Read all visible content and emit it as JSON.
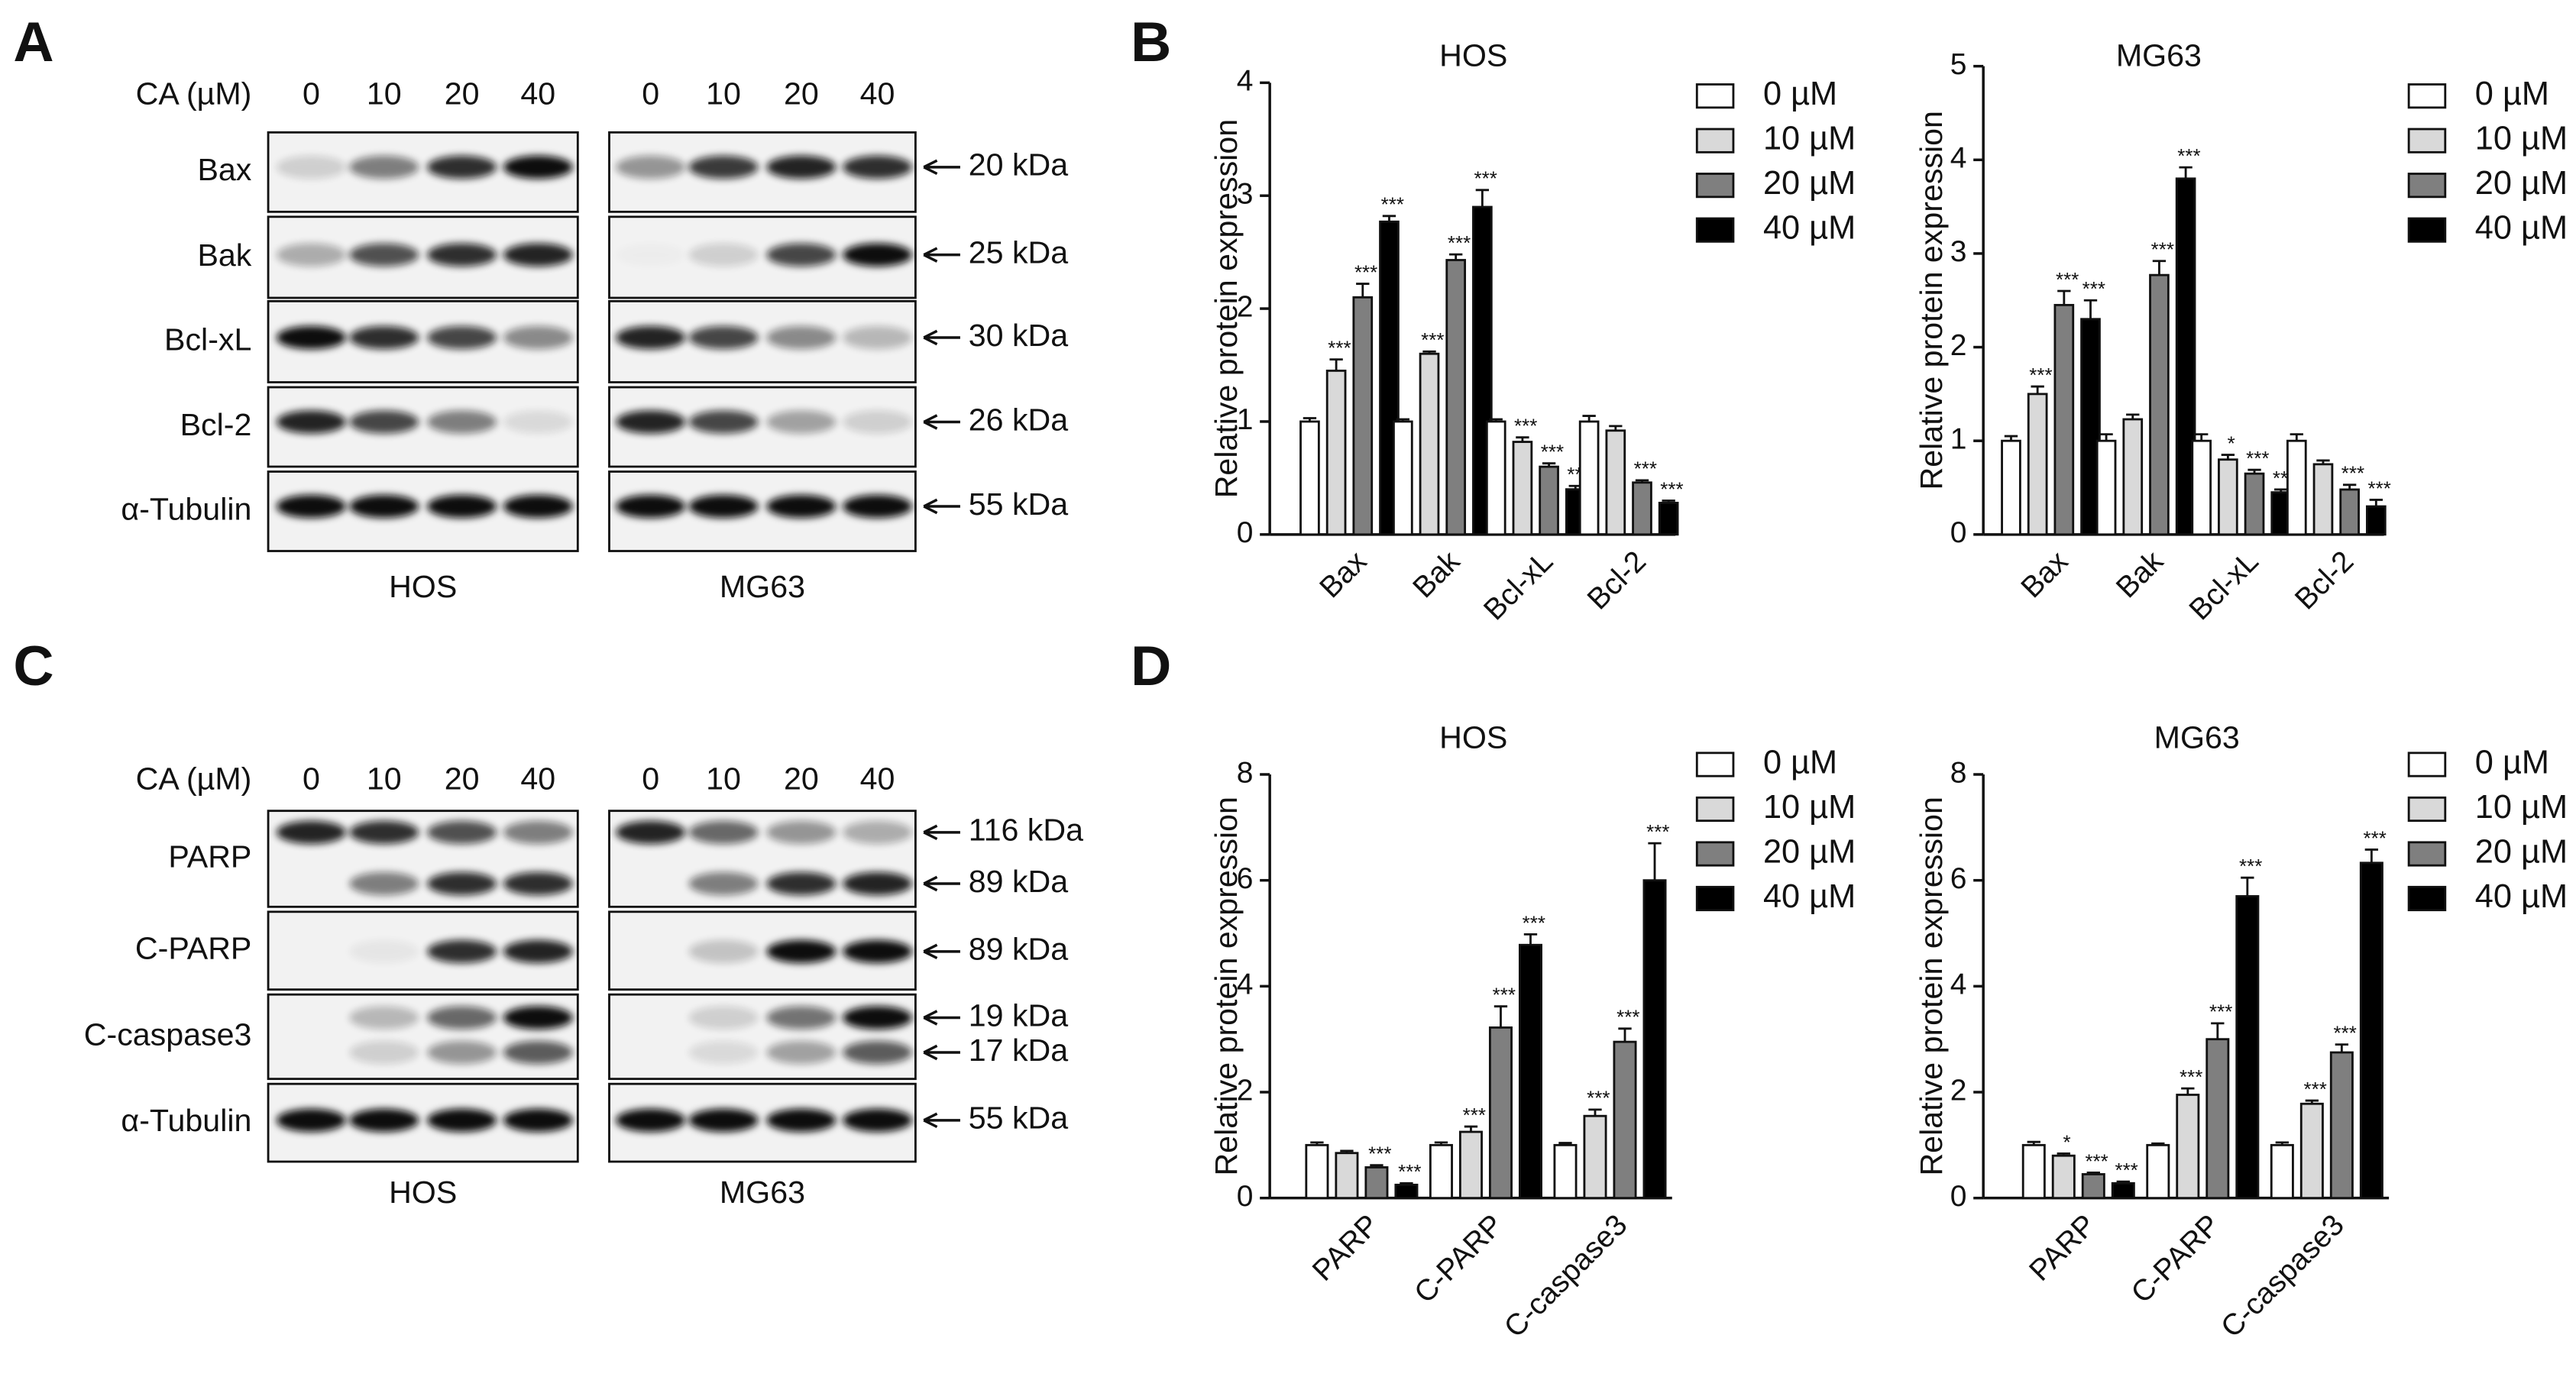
{
  "letters": [
    "A",
    "B",
    "C",
    "D"
  ],
  "blots": [
    {
      "header": "CA (µM)",
      "doses": [
        "0",
        "10",
        "20",
        "40"
      ],
      "cells": [
        "HOS",
        "MG63"
      ],
      "rows": [
        {
          "label": "Bax",
          "markers": [
            "20 kDa"
          ]
        },
        {
          "label": "Bak",
          "markers": [
            "25 kDa"
          ]
        },
        {
          "label": "Bcl-xL",
          "markers": [
            "30 kDa"
          ]
        },
        {
          "label": "Bcl-2",
          "markers": [
            "26 kDa"
          ]
        },
        {
          "label": "α-Tubulin",
          "markers": [
            "55 kDa"
          ]
        }
      ]
    },
    {
      "header": "CA (µM)",
      "doses": [
        "0",
        "10",
        "20",
        "40"
      ],
      "cells": [
        "HOS",
        "MG63"
      ],
      "rows": [
        {
          "label": "PARP",
          "markers": [
            "116 kDa",
            "89 kDa"
          ]
        },
        {
          "label": "C-PARP",
          "markers": [
            "89 kDa"
          ]
        },
        {
          "label": "C-caspase3",
          "markers": [
            "19 kDa",
            "17 kDa"
          ]
        },
        {
          "label": "α-Tubulin",
          "markers": [
            "55 kDa"
          ]
        }
      ]
    }
  ],
  "chart_data": [
    {
      "type": "bar",
      "title": "HOS",
      "ylabel": "Relative protein expression",
      "categories": [
        "Bax",
        "Bak",
        "Bcl-xL",
        "Bcl-2"
      ],
      "ylim": [
        0,
        4
      ],
      "yticks": [
        0,
        1,
        2,
        3,
        4
      ],
      "series": [
        {
          "name": "0 µM",
          "color": "#ffffff",
          "values": [
            1,
            1,
            1,
            1
          ],
          "errors": [
            0.03,
            0.02,
            0.02,
            0.05
          ],
          "labels": [
            null,
            null,
            null,
            null
          ]
        },
        {
          "name": "10 µM",
          "color": "#d9d9d9",
          "values": [
            1.45,
            1.6,
            0.82,
            0.92
          ],
          "errors": [
            0.1,
            0.02,
            0.04,
            0.04
          ],
          "labels": [
            "***",
            "***",
            "***",
            null
          ]
        },
        {
          "name": "20 µM",
          "color": "#7f7f7f",
          "values": [
            2.1,
            2.43,
            0.6,
            0.46
          ],
          "errors": [
            0.12,
            0.05,
            0.03,
            0.02
          ],
          "labels": [
            "***",
            "***",
            "***",
            "***"
          ]
        },
        {
          "name": "40 µM",
          "color": "#000000",
          "values": [
            2.77,
            2.9,
            0.4,
            0.28
          ],
          "errors": [
            0.05,
            0.15,
            0.03,
            0.02
          ],
          "labels": [
            "***",
            "***",
            "***",
            "***"
          ]
        }
      ]
    },
    {
      "type": "bar",
      "title": "MG63",
      "ylabel": "Relative protein expression",
      "categories": [
        "Bax",
        "Bak",
        "Bcl-xL",
        "Bcl-2"
      ],
      "ylim": [
        0,
        5
      ],
      "yticks": [
        0,
        1,
        2,
        3,
        4,
        5
      ],
      "series": [
        {
          "name": "0 µM",
          "color": "#ffffff",
          "values": [
            1,
            1,
            1,
            1
          ],
          "errors": [
            0.05,
            0.07,
            0.07,
            0.07
          ],
          "labels": [
            null,
            null,
            null,
            null
          ]
        },
        {
          "name": "10 µM",
          "color": "#d9d9d9",
          "values": [
            1.5,
            1.23,
            0.8,
            0.75
          ],
          "errors": [
            0.08,
            0.05,
            0.05,
            0.04
          ],
          "labels": [
            "***",
            null,
            "*",
            null
          ]
        },
        {
          "name": "20 µM",
          "color": "#7f7f7f",
          "values": [
            2.45,
            2.77,
            0.65,
            0.48
          ],
          "errors": [
            0.15,
            0.15,
            0.04,
            0.05
          ],
          "labels": [
            "***",
            "***",
            "***",
            "***"
          ]
        },
        {
          "name": "40 µM",
          "color": "#000000",
          "values": [
            2.3,
            3.8,
            0.45,
            0.3
          ],
          "errors": [
            0.2,
            0.12,
            0.03,
            0.07
          ],
          "labels": [
            "***",
            "***",
            "***",
            "***"
          ]
        }
      ]
    },
    {
      "type": "bar",
      "title": "HOS",
      "ylabel": "Relative protein expression",
      "categories": [
        "PARP",
        "C-PARP",
        "C-caspase3"
      ],
      "ylim": [
        0,
        8
      ],
      "yticks": [
        0,
        2,
        4,
        6,
        8
      ],
      "series": [
        {
          "name": "0 µM",
          "color": "#ffffff",
          "values": [
            1,
            1,
            1
          ],
          "errors": [
            0.05,
            0.05,
            0.04
          ],
          "labels": [
            null,
            null,
            null
          ]
        },
        {
          "name": "10 µM",
          "color": "#d9d9d9",
          "values": [
            0.85,
            1.25,
            1.55
          ],
          "errors": [
            0.04,
            0.1,
            0.12
          ],
          "labels": [
            null,
            "***",
            "***"
          ]
        },
        {
          "name": "20 µM",
          "color": "#7f7f7f",
          "values": [
            0.58,
            3.22,
            2.95
          ],
          "errors": [
            0.04,
            0.4,
            0.25
          ],
          "labels": [
            "***",
            "***",
            "***"
          ]
        },
        {
          "name": "40 µM",
          "color": "#000000",
          "values": [
            0.25,
            4.78,
            6.0
          ],
          "errors": [
            0.03,
            0.2,
            0.7
          ],
          "labels": [
            "***",
            "***",
            "***"
          ]
        }
      ]
    },
    {
      "type": "bar",
      "title": "MG63",
      "ylabel": "Relative protein expression",
      "categories": [
        "PARP",
        "C-PARP",
        "C-caspase3"
      ],
      "ylim": [
        0,
        8
      ],
      "yticks": [
        0,
        2,
        4,
        6,
        8
      ],
      "series": [
        {
          "name": "0 µM",
          "color": "#ffffff",
          "values": [
            1,
            1,
            1
          ],
          "errors": [
            0.06,
            0.03,
            0.05
          ],
          "labels": [
            null,
            null,
            null
          ]
        },
        {
          "name": "10 µM",
          "color": "#d9d9d9",
          "values": [
            0.8,
            1.95,
            1.78
          ],
          "errors": [
            0.04,
            0.12,
            0.06
          ],
          "labels": [
            "*",
            "***",
            "***"
          ]
        },
        {
          "name": "20 µM",
          "color": "#7f7f7f",
          "values": [
            0.45,
            3.0,
            2.75
          ],
          "errors": [
            0.03,
            0.3,
            0.15
          ],
          "labels": [
            "***",
            "***",
            "***"
          ]
        },
        {
          "name": "40 µM",
          "color": "#000000",
          "values": [
            0.28,
            5.7,
            6.33
          ],
          "errors": [
            0.03,
            0.35,
            0.25
          ],
          "labels": [
            "***",
            "***",
            "***"
          ]
        }
      ]
    }
  ]
}
